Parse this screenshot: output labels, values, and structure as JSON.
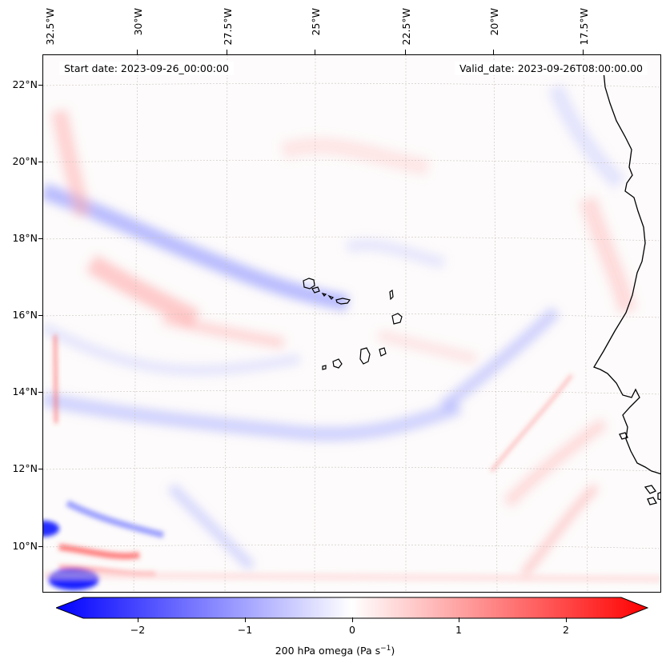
{
  "map": {
    "start_date": "Start date: 2023-09-26_00:00:00",
    "valid_date": "Valid_date: 2023-09-26T08:00:00.00",
    "lon_labels": [
      "32.5°W",
      "30°W",
      "27.5°W",
      "25°W",
      "22.5°W",
      "20°W",
      "17.5°W"
    ],
    "lat_labels": [
      "22°N",
      "20°N",
      "18°N",
      "16°N",
      "14°N",
      "12°N",
      "10°N"
    ],
    "gridlines": true,
    "features": [
      "cape-verde-islands",
      "west-africa-coastline"
    ]
  },
  "colorbar": {
    "label_main": "200 hPa omega (Pa s",
    "label_exp": "−1",
    "label_end": ")",
    "ticks": [
      "−2",
      "−1",
      "0",
      "1",
      "2"
    ],
    "range": [
      -2.6,
      2.6
    ],
    "extend": "both",
    "colormap": "bwr",
    "colors": {
      "low": "#0000ff",
      "mid": "#ffffff",
      "high": "#ff0000"
    }
  }
}
